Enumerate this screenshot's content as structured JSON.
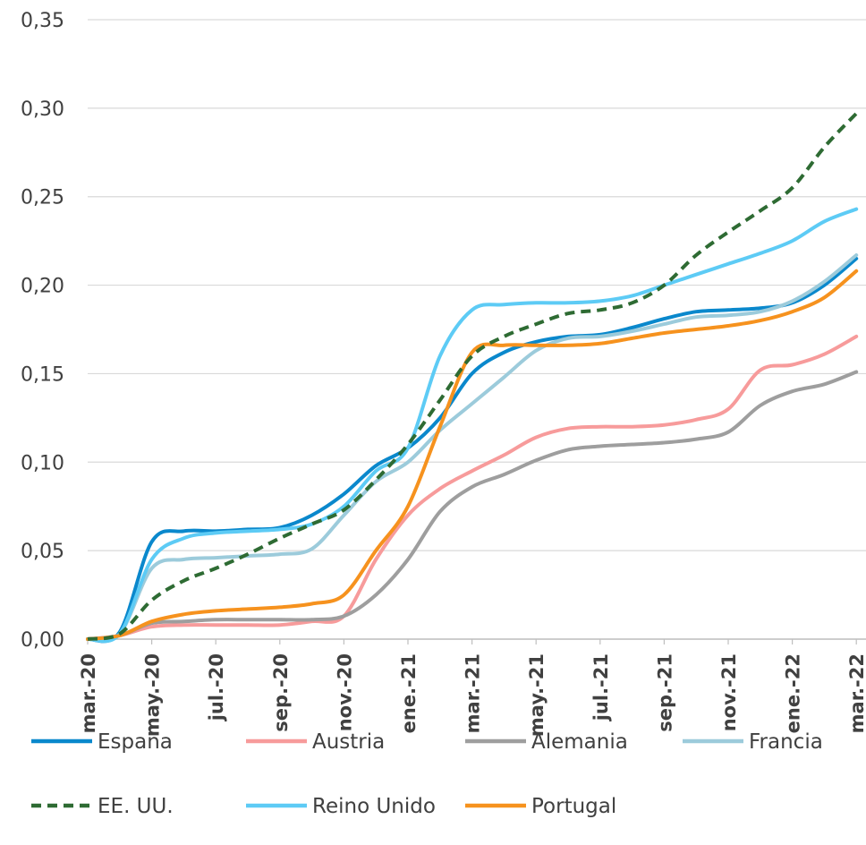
{
  "chart_data": {
    "type": "line",
    "title": "",
    "xlabel": "",
    "ylabel": "",
    "ylim": [
      0,
      0.35
    ],
    "yticks": [
      "0,00",
      "0,05",
      "0,10",
      "0,15",
      "0,20",
      "0,25",
      "0,30",
      "0,35"
    ],
    "grid": "horizontal",
    "legend_position": "bottom",
    "x": [
      "mar.-20",
      "abr.-20",
      "may.-20",
      "jun.-20",
      "jul.-20",
      "ago.-20",
      "sep.-20",
      "oct.-20",
      "nov.-20",
      "dic.-20",
      "ene.-21",
      "feb.-21",
      "mar.-21",
      "abr.-21",
      "may.-21",
      "jun.-21",
      "jul.-21",
      "ago.-21",
      "sep.-21",
      "oct.-21",
      "nov.-21",
      "dic.-21",
      "ene.-22",
      "feb.-22",
      "mar.-22"
    ],
    "x_tick_labels": [
      "mar.-20",
      "may.-20",
      "jul.-20",
      "sep.-20",
      "nov.-20",
      "ene.-21",
      "mar.-21",
      "may.-21",
      "jul.-21",
      "sep.-21",
      "nov.-21",
      "ene.-22",
      "mar.-22"
    ],
    "series": [
      {
        "name": "España",
        "color": "#0A88CC",
        "dash": "solid",
        "values": [
          0.0,
          0.004,
          0.055,
          0.061,
          0.061,
          0.062,
          0.063,
          0.07,
          0.082,
          0.098,
          0.108,
          0.125,
          0.15,
          0.162,
          0.168,
          0.171,
          0.172,
          0.176,
          0.181,
          0.185,
          0.186,
          0.187,
          0.19,
          0.2,
          0.215
        ]
      },
      {
        "name": "Austria",
        "color": "#F79B9B",
        "dash": "solid",
        "values": [
          0.0,
          0.002,
          0.007,
          0.008,
          0.008,
          0.008,
          0.008,
          0.01,
          0.013,
          0.045,
          0.07,
          0.085,
          0.095,
          0.104,
          0.114,
          0.119,
          0.12,
          0.12,
          0.121,
          0.124,
          0.13,
          0.152,
          0.155,
          0.161,
          0.171
        ]
      },
      {
        "name": "Alemania",
        "color": "#9E9E9E",
        "dash": "solid",
        "values": [
          0.0,
          0.002,
          0.009,
          0.01,
          0.011,
          0.011,
          0.011,
          0.011,
          0.013,
          0.025,
          0.045,
          0.072,
          0.086,
          0.093,
          0.101,
          0.107,
          0.109,
          0.11,
          0.111,
          0.113,
          0.117,
          0.132,
          0.14,
          0.144,
          0.151
        ]
      },
      {
        "name": "Francia",
        "color": "#9CCBDB",
        "dash": "solid",
        "values": [
          0.0,
          0.003,
          0.04,
          0.045,
          0.046,
          0.047,
          0.048,
          0.051,
          0.07,
          0.089,
          0.1,
          0.118,
          0.133,
          0.148,
          0.163,
          0.17,
          0.171,
          0.174,
          0.178,
          0.182,
          0.183,
          0.185,
          0.191,
          0.202,
          0.217
        ]
      },
      {
        "name": "EE. UU.",
        "color": "#2E6B33",
        "dash": "dashed",
        "values": [
          0.0,
          0.003,
          0.022,
          0.033,
          0.04,
          0.048,
          0.057,
          0.065,
          0.073,
          0.09,
          0.11,
          0.135,
          0.16,
          0.171,
          0.178,
          0.184,
          0.186,
          0.19,
          0.2,
          0.217,
          0.23,
          0.242,
          0.255,
          0.278,
          0.297
        ]
      },
      {
        "name": "Reino Unido",
        "color": "#5DCBF5",
        "dash": "solid",
        "values": [
          0.0,
          0.003,
          0.045,
          0.057,
          0.06,
          0.061,
          0.062,
          0.065,
          0.075,
          0.095,
          0.108,
          0.16,
          0.186,
          0.189,
          0.19,
          0.19,
          0.191,
          0.194,
          0.2,
          0.206,
          0.212,
          0.218,
          0.225,
          0.236,
          0.243
        ]
      },
      {
        "name": "Portugal",
        "color": "#F6921E",
        "dash": "solid",
        "values": [
          0.0,
          0.002,
          0.01,
          0.014,
          0.016,
          0.017,
          0.018,
          0.02,
          0.025,
          0.05,
          0.075,
          0.12,
          0.162,
          0.166,
          0.166,
          0.166,
          0.167,
          0.17,
          0.173,
          0.175,
          0.177,
          0.18,
          0.185,
          0.193,
          0.208
        ]
      }
    ]
  }
}
